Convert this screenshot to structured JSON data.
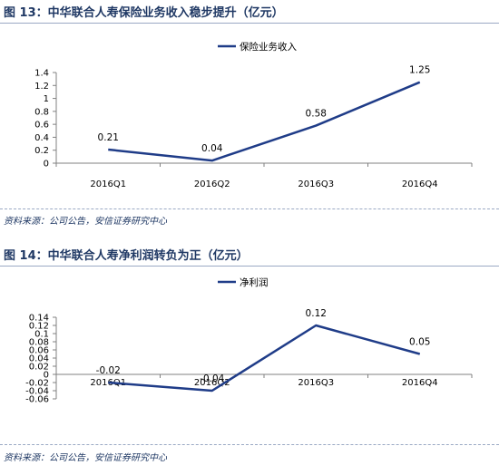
{
  "figures": [
    {
      "title": "图 13：中华联合人寿保险业务收入稳步提升（亿元）",
      "source": "资料来源：公司公告，安信证券研究中心"
    },
    {
      "title": "图 14：中华联合人寿净利润转负为正（亿元）",
      "source": "资料来源：公司公告，安信证券研究中心"
    }
  ],
  "chart_data": [
    {
      "type": "line",
      "categories": [
        "2016Q1",
        "2016Q2",
        "2016Q3",
        "2016Q4"
      ],
      "series": [
        {
          "name": "保险业务收入",
          "values": [
            0.21,
            0.04,
            0.58,
            1.25
          ],
          "color": "#1f3c88"
        }
      ],
      "data_labels": [
        "0.21",
        "0.04",
        "0.58",
        "1.25"
      ],
      "title": "图 13：中华联合人寿保险业务收入稳步提升（亿元）",
      "xlabel": "",
      "ylabel": "",
      "ylim": [
        0,
        1.4
      ],
      "yticks": [
        0,
        0.2,
        0.4,
        0.6,
        0.8,
        1,
        1.2,
        1.4
      ],
      "ytick_labels": [
        "0",
        "0.2",
        "0.4",
        "0.6",
        "0.8",
        "1",
        "1.2",
        "1.4"
      ],
      "grid": false,
      "legend": "top-center"
    },
    {
      "type": "line",
      "categories": [
        "2016Q1",
        "2016Q2",
        "2016Q3",
        "2016Q4"
      ],
      "series": [
        {
          "name": "净利润",
          "values": [
            -0.02,
            -0.04,
            0.12,
            0.05
          ],
          "color": "#1f3c88"
        }
      ],
      "data_labels": [
        "-0.02",
        "-0.04",
        "0.12",
        "0.05"
      ],
      "title": "图 14：中华联合人寿净利润转负为正（亿元）",
      "xlabel": "",
      "ylabel": "",
      "ylim": [
        -0.06,
        0.14
      ],
      "yticks": [
        -0.06,
        -0.04,
        -0.02,
        0,
        0.02,
        0.04,
        0.06,
        0.08,
        0.1,
        0.12,
        0.14
      ],
      "ytick_labels": [
        "-0.06",
        "-0.04",
        "-0.02",
        "0",
        "0.02",
        "0.04",
        "0.06",
        "0.08",
        "0.1",
        "0.12",
        "0.14"
      ],
      "grid": false,
      "legend": "top-center"
    }
  ]
}
